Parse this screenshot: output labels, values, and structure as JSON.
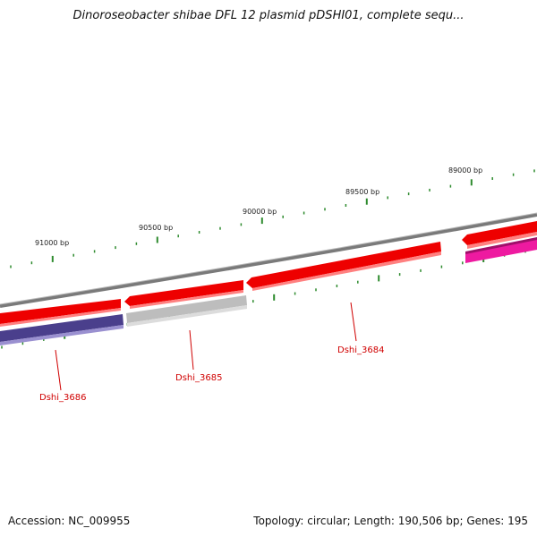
{
  "title": "Dinoroseobacter shibae DFL 12 plasmid pDSHI01, complete sequ...",
  "footer": {
    "accession": "Accession: NC_009955",
    "summary": "Topology: circular; Length: 190,506 bp; Genes: 195"
  },
  "colors": {
    "backbone": "#7a7a7a",
    "gene_forward_red": "#ee0000",
    "gene_gray": "#bdbdbd",
    "gene_purple": "#4a3f8c",
    "gene_magenta": "#ee1aa0",
    "tick_green": "#2e8b2e",
    "label_red": "#d00000"
  },
  "position_labels": [
    "91000 bp",
    "90500 bp",
    "90000 bp",
    "89500 bp",
    "89000 bp"
  ],
  "gene_labels": [
    "Dshi_3686",
    "Dshi_3685",
    "Dshi_3684"
  ]
}
